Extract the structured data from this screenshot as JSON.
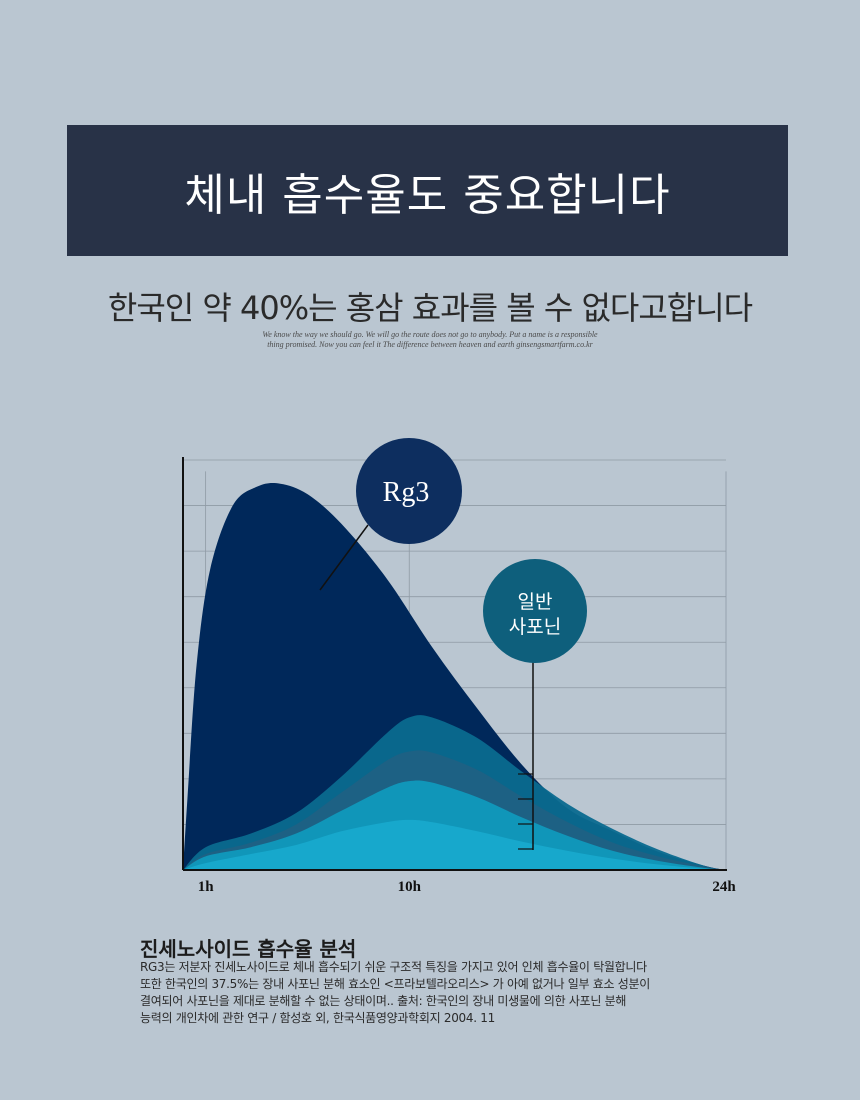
{
  "header": {
    "title": "체내 흡수율도 중요합니다"
  },
  "subtitle": "한국인 약 40%는 홍삼 효과를 볼 수 없다고합니다",
  "tagline": {
    "line1": "We know the way we should go. We will go the route does not go to anybody. Put a name is a responsible",
    "line2": "thing promised. Now you can feel it The difference between heaven and earth ginsengsmartfarm.co.kr"
  },
  "chart_data": {
    "type": "area",
    "x_ticks": [
      {
        "label": "1h",
        "value": 1
      },
      {
        "label": "10h",
        "value": 10
      },
      {
        "label": "24h",
        "value": 24
      }
    ],
    "xlim": [
      0,
      24
    ],
    "ylim": [
      0,
      9
    ],
    "grid": true,
    "series": [
      {
        "name": "Rg3",
        "color": "#00285a",
        "points": [
          [
            0,
            0
          ],
          [
            0.2,
            1.6
          ],
          [
            0.6,
            4.5
          ],
          [
            1.2,
            6.6
          ],
          [
            2.2,
            8.0
          ],
          [
            3.3,
            8.42
          ],
          [
            4.3,
            8.48
          ],
          [
            5.5,
            8.25
          ],
          [
            7,
            7.6
          ],
          [
            9,
            6.4
          ],
          [
            11,
            4.9
          ],
          [
            13,
            3.55
          ],
          [
            15,
            2.3
          ],
          [
            17,
            1.35
          ],
          [
            19,
            0.85
          ],
          [
            21,
            0.4
          ],
          [
            23,
            0.1
          ],
          [
            24,
            0
          ]
        ]
      },
      {
        "name": "일반 사포닌",
        "color": "#0a6a8f",
        "points": [
          [
            0,
            0
          ],
          [
            1,
            0.5
          ],
          [
            3,
            0.8
          ],
          [
            5,
            1.25
          ],
          [
            7,
            2.05
          ],
          [
            9,
            3.0
          ],
          [
            10,
            3.35
          ],
          [
            11,
            3.35
          ],
          [
            13,
            2.9
          ],
          [
            15,
            2.15
          ],
          [
            17,
            1.45
          ],
          [
            19,
            0.9
          ],
          [
            21,
            0.45
          ],
          [
            23,
            0.1
          ],
          [
            24,
            0
          ]
        ]
      },
      {
        "color": "#1f6184",
        "points": [
          [
            0,
            0
          ],
          [
            1,
            0.35
          ],
          [
            3,
            0.6
          ],
          [
            5,
            1.0
          ],
          [
            7,
            1.7
          ],
          [
            9,
            2.4
          ],
          [
            10,
            2.6
          ],
          [
            11,
            2.58
          ],
          [
            13,
            2.2
          ],
          [
            15,
            1.6
          ],
          [
            17,
            1.05
          ],
          [
            19,
            0.6
          ],
          [
            21,
            0.3
          ],
          [
            23,
            0.08
          ],
          [
            24,
            0
          ]
        ]
      },
      {
        "color": "#1099bc",
        "points": [
          [
            0,
            0
          ],
          [
            1,
            0.3
          ],
          [
            3,
            0.5
          ],
          [
            5,
            0.8
          ],
          [
            7,
            1.3
          ],
          [
            9,
            1.8
          ],
          [
            10,
            1.95
          ],
          [
            11,
            1.92
          ],
          [
            13,
            1.6
          ],
          [
            15,
            1.15
          ],
          [
            17,
            0.75
          ],
          [
            19,
            0.42
          ],
          [
            21,
            0.2
          ],
          [
            23,
            0.05
          ],
          [
            24,
            0
          ]
        ]
      },
      {
        "color": "#18a9cc",
        "points": [
          [
            0,
            0
          ],
          [
            1,
            0.15
          ],
          [
            3,
            0.35
          ],
          [
            5,
            0.55
          ],
          [
            7,
            0.85
          ],
          [
            9,
            1.05
          ],
          [
            10,
            1.1
          ],
          [
            11,
            1.05
          ],
          [
            13,
            0.85
          ],
          [
            15,
            0.62
          ],
          [
            17,
            0.42
          ],
          [
            19,
            0.25
          ],
          [
            21,
            0.12
          ],
          [
            23,
            0.03
          ],
          [
            24,
            0
          ]
        ]
      }
    ],
    "callouts": [
      {
        "label": "Rg3",
        "color": "#0d2e5f"
      },
      {
        "label_line1": "일반",
        "label_line2": "사포닌",
        "color": "#0e5f7c"
      }
    ]
  },
  "caption": {
    "title": "진세노사이드 흡수율 분석",
    "lines": [
      "RG3는 저분자 진세노사이드로 체내 흡수되기 쉬운 구조적 특징을 가지고 있어 인체 흡수율이 탁월합니다",
      "또한 한국인의 37.5%는 장내 사포닌 분해 효소인 <프라보텔라오리스> 가 아예 없거나 일부 효소 성분이",
      "결여되어 사포닌을 제대로 분해할 수 없는 상태이며.. 출처: 한국인의 장내 미생물에 의한 사포닌 분해",
      "능력의 개인차에 관한 연구 / 함성호 외, 한국식품영양과학회지 2004. 11"
    ]
  }
}
